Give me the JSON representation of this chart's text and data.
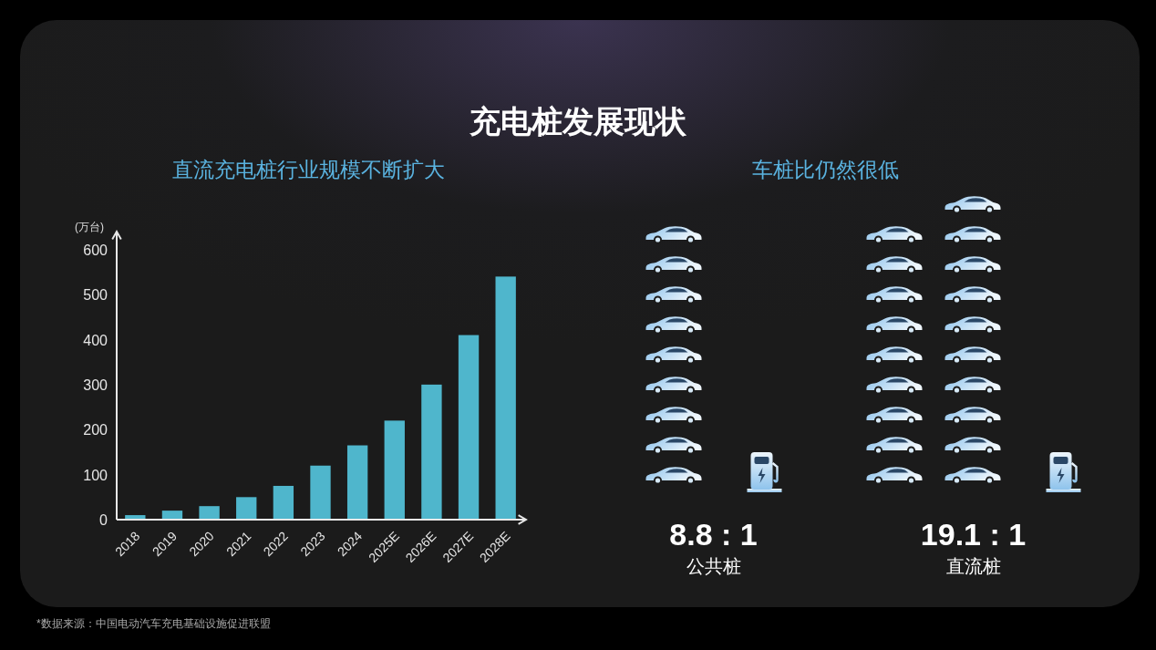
{
  "chart_data": [
    {
      "type": "bar",
      "title": "充电桩发展现状",
      "subtitle": "直流充电桩行业规模不断扩大",
      "ylabel": "(万台)",
      "categories": [
        "2018",
        "2019",
        "2020",
        "2021",
        "2022",
        "2023",
        "2024",
        "2025E",
        "2026E",
        "2027E",
        "2028E"
      ],
      "values": [
        10,
        20,
        30,
        50,
        75,
        120,
        165,
        220,
        300,
        410,
        540
      ],
      "color": "#4fb6cc",
      "ylim": [
        0,
        640
      ],
      "yticks": [
        0,
        100,
        200,
        300,
        400,
        500,
        600
      ],
      "annotations": [
        "*数据来源：中国电动汽车充电基础设施促进联盟"
      ]
    },
    {
      "type": "other",
      "title": "车桩比仍然很低",
      "categories": [
        "公共桩",
        "直流桩"
      ],
      "values": [
        8.8,
        19.1
      ],
      "value_labels": [
        "8.8 : 1",
        "19.1 : 1"
      ]
    }
  ]
}
